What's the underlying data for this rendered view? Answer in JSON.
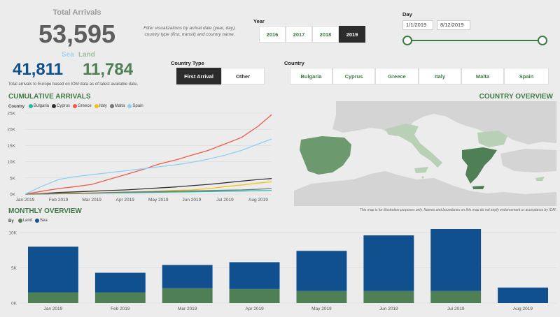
{
  "kpi": {
    "title": "Total Arrivals",
    "total": "53,595",
    "sea_label": "Sea",
    "land_label": "Land",
    "sea_value": "41,811",
    "land_value": "11,784",
    "caption": "Total arrivals to Europe based on IOM data as of latest available date."
  },
  "filter_note": "Filter visualizations by arrival date (year, day), country type (first, transit) and country name.",
  "year": {
    "label": "Year",
    "options": [
      "2016",
      "2017",
      "2018",
      "2019"
    ],
    "selected": "2019"
  },
  "day": {
    "label": "Day",
    "start": "1/1/2019",
    "end": "8/12/2019"
  },
  "country_type": {
    "label": "Country Type",
    "options": [
      "First Arrival",
      "Other"
    ],
    "selected": "First Arrival"
  },
  "country": {
    "label": "Country",
    "options": [
      "Bulgaria",
      "Cyprus",
      "Greece",
      "Italy",
      "Malta",
      "Spain"
    ]
  },
  "cumulative": {
    "title": "CUMULATIVE ARRIVALS",
    "legend_label": "Country"
  },
  "map": {
    "title": "COUNTRY OVERVIEW",
    "note": "This map is for illustration purposes only. Names and boundaries on this map do not imply endorsement or acceptance by IOM."
  },
  "monthly": {
    "title": "MONTHLY OVERVIEW",
    "legend_label": "By"
  },
  "colors": {
    "sea": "#11508f",
    "land": "#4f7f55",
    "accent": "#3f7a45"
  },
  "chart_data": [
    {
      "type": "line",
      "title": "CUMULATIVE ARRIVALS",
      "legend_title": "Country",
      "legend_position": "top-left",
      "x_ticks": [
        "Jan 2019",
        "Feb 2019",
        "Mar 2019",
        "Apr 2019",
        "May 2019",
        "Jun 2019",
        "Jul 2019",
        "Aug 2019"
      ],
      "x": [
        0,
        0.5,
        1,
        1.5,
        2,
        2.5,
        3,
        3.5,
        4,
        4.5,
        5,
        5.5,
        6,
        6.5,
        7,
        7.4
      ],
      "y_ticks": [
        "0K",
        "5K",
        "10K",
        "15K",
        "20K",
        "25K"
      ],
      "ylim": [
        0,
        25000
      ],
      "grid": true,
      "series": [
        {
          "name": "Bulgaria",
          "color": "#1fb8a6",
          "values": [
            0,
            60,
            120,
            200,
            280,
            350,
            420,
            500,
            580,
            650,
            720,
            800,
            880,
            950,
            1050,
            1100
          ]
        },
        {
          "name": "Cyprus",
          "color": "#333333",
          "values": [
            0,
            200,
            500,
            700,
            900,
            1100,
            1300,
            1600,
            1900,
            2200,
            2600,
            3000,
            3500,
            4000,
            4500,
            4800
          ]
        },
        {
          "name": "Greece",
          "color": "#f05a4a",
          "values": [
            0,
            900,
            1700,
            2300,
            3000,
            4500,
            6000,
            7500,
            9200,
            10500,
            12000,
            13500,
            15500,
            17500,
            21000,
            24500
          ]
        },
        {
          "name": "Italy",
          "color": "#f2c40f",
          "values": [
            0,
            100,
            200,
            270,
            380,
            480,
            600,
            750,
            950,
            1150,
            1300,
            1700,
            2300,
            2800,
            3400,
            3800
          ]
        },
        {
          "name": "Malta",
          "color": "#777777",
          "values": [
            0,
            50,
            100,
            200,
            300,
            450,
            600,
            700,
            800,
            900,
            1000,
            1100,
            1200,
            1300,
            1500,
            1700
          ]
        },
        {
          "name": "Spain",
          "color": "#8fd0f2",
          "values": [
            0,
            2400,
            4500,
            5400,
            6000,
            6600,
            7200,
            7800,
            8400,
            9000,
            9800,
            10800,
            12000,
            13500,
            15500,
            17000
          ]
        }
      ]
    },
    {
      "type": "bar",
      "title": "MONTHLY OVERVIEW",
      "legend_title": "By",
      "legend_position": "top-left",
      "stacked": true,
      "categories": [
        "Jan 2019",
        "Feb 2019",
        "Mar 2019",
        "Apr 2019",
        "May 2019",
        "Jun 2019",
        "Jul 2019",
        "Aug 2019"
      ],
      "y_ticks": [
        "0K",
        "5K",
        "10K"
      ],
      "ylim": [
        0,
        10700
      ],
      "grid": true,
      "series": [
        {
          "name": "Land",
          "color": "#4f7f55",
          "values": [
            1500,
            1500,
            2100,
            2000,
            1700,
            1700,
            1700,
            0
          ]
        },
        {
          "name": "Sea",
          "color": "#11508f",
          "values": [
            6500,
            2800,
            3300,
            3800,
            5700,
            7900,
            8800,
            2200
          ]
        }
      ]
    }
  ]
}
